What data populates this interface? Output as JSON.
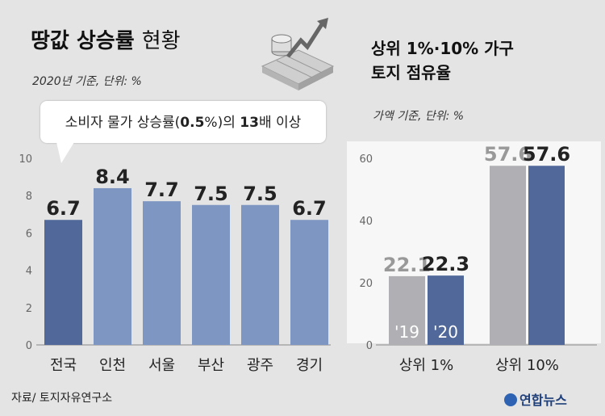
{
  "left": {
    "title_bold": "땅값 상승률",
    "title_light": "현황",
    "subtitle": "2020년 기준, 단위: %",
    "callout": {
      "pre": "소비자 물가 상승률(",
      "bold1": "0.5",
      "mid": "%)의 ",
      "bold2": "13",
      "post": "배 이상"
    }
  },
  "right": {
    "title_line1": "상위 1%·10% 가구",
    "title_line2": "토지 점유율",
    "subtitle": "가액 기준, 단위: %",
    "year_labels": [
      "'19",
      "'20"
    ]
  },
  "source": "자료/ 토지자유연구소",
  "logo_text": "연합뉴스",
  "colors": {
    "bg": "#e4e4e4",
    "bar_dark": "#51699a",
    "bar_light": "#7e96c2",
    "bar_grey": "#b0b0b4"
  },
  "chart_data": [
    {
      "type": "bar",
      "categories": [
        "전국",
        "인천",
        "서울",
        "부산",
        "광주",
        "경기"
      ],
      "values": [
        6.7,
        8.4,
        7.7,
        7.5,
        7.5,
        6.7
      ],
      "value_labels": [
        "6.7",
        "8.4",
        "7.7",
        "7.5",
        "7.5",
        "6.7"
      ],
      "ylim": [
        0,
        10
      ],
      "yticks": [
        "0",
        "2",
        "4",
        "6",
        "8",
        "10"
      ],
      "grid": false
    },
    {
      "type": "bar",
      "categories": [
        "상위 1%",
        "상위 10%"
      ],
      "series": [
        {
          "values": [
            22.1,
            57.6
          ],
          "value_labels": [
            "22.1",
            "57.6"
          ]
        },
        {
          "values": [
            22.3,
            57.6
          ],
          "value_labels": [
            "22.3",
            "57.6"
          ]
        }
      ],
      "ylim": [
        0,
        60
      ],
      "yticks": [
        "0",
        "20",
        "40",
        "60"
      ],
      "grid": false
    }
  ]
}
